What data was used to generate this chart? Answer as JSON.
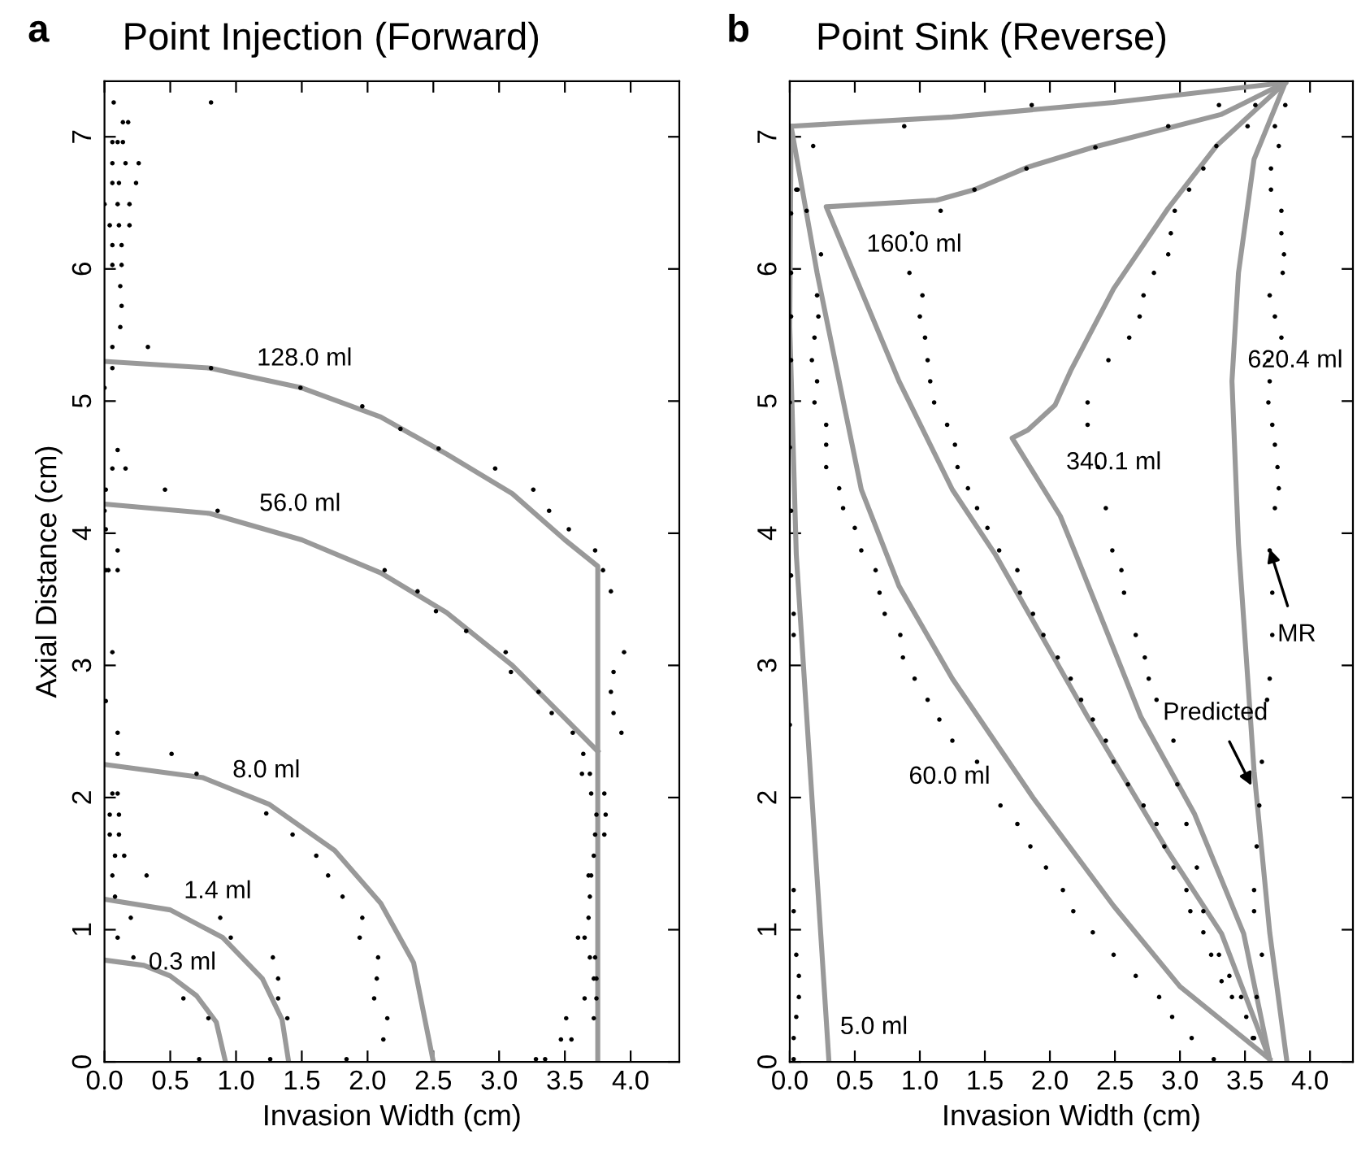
{
  "chart_data": [
    {
      "type": "line",
      "title": "Point Injection (Forward)",
      "xlabel": "Invasion Width (cm)",
      "ylabel": "Axial Distance (cm)",
      "xlim": [
        0,
        4.37
      ],
      "ylim": [
        0,
        7.42
      ],
      "xticks": [
        {
          "value": 0,
          "label": "0.0"
        },
        {
          "value": 0.5,
          "label": "0.5"
        },
        {
          "value": 1,
          "label": "1.0"
        },
        {
          "value": 1.5,
          "label": "1.5"
        },
        {
          "value": 2,
          "label": "2.0"
        },
        {
          "value": 2.5,
          "label": "2.5"
        },
        {
          "value": 3,
          "label": "3.0"
        },
        {
          "value": 3.5,
          "label": "3.5"
        },
        {
          "value": 4,
          "label": "4.0"
        }
      ],
      "yticks": [
        0,
        1,
        2,
        3,
        4,
        5,
        6,
        7
      ],
      "grid": false,
      "series": [
        {
          "name": "0.3 ml",
          "color": "#999999",
          "x": [
            0,
            0.3,
            0.5,
            0.7,
            0.85,
            0.92
          ],
          "values": [
            0.77,
            0.73,
            0.65,
            0.5,
            0.3,
            0
          ]
        },
        {
          "name": "1.4 ml",
          "color": "#999999",
          "x": [
            0,
            0.5,
            0.9,
            1.2,
            1.35,
            1.4
          ],
          "values": [
            1.23,
            1.15,
            0.94,
            0.63,
            0.32,
            0
          ]
        },
        {
          "name": "8.0 ml",
          "color": "#999999",
          "x": [
            0,
            0.75,
            1.25,
            1.75,
            2.1,
            2.35,
            2.5
          ],
          "values": [
            2.25,
            2.15,
            1.95,
            1.6,
            1.2,
            0.75,
            0
          ]
        },
        {
          "name": "56.0 ml",
          "color": "#999999",
          "x": [
            0,
            0.8,
            1.5,
            2.1,
            2.6,
            3.1,
            3.5,
            3.75
          ],
          "values": [
            4.22,
            4.15,
            3.95,
            3.7,
            3.4,
            3.0,
            2.6,
            2.35
          ]
        },
        {
          "name": "128.0 ml",
          "color": "#999999",
          "x": [
            0,
            0.8,
            1.5,
            2.1,
            2.6,
            3.1,
            3.5,
            3.75,
            3.75
          ],
          "values": [
            5.3,
            5.25,
            5.1,
            4.88,
            4.6,
            4.3,
            3.95,
            3.75,
            0
          ]
        },
        {
          "type": "scatter",
          "color": "#000000",
          "x": [
            0.07,
            0.81,
            0.14,
            0.18,
            0.06,
            0.1,
            0.14,
            0.06,
            0.16,
            0.26,
            0.06,
            0.11,
            0.24,
            0.0,
            0.1,
            0.19,
            0.04,
            0.11,
            0.19,
            0.06,
            0.13,
            0.06,
            0.13,
            0.12,
            0.13,
            0.12,
            0.06,
            0.33,
            0.06,
            0.81,
            1.49,
            1.96,
            2.25,
            2.54,
            2.97,
            3.26,
            3.38,
            3.53,
            3.73,
            0.0,
            0.1,
            0.06,
            0.16,
            0.46,
            0.01,
            0.0,
            0.86,
            0.01,
            0.1,
            0.03,
            0.1,
            2.13,
            2.38,
            2.52,
            2.75,
            3.05,
            3.09,
            3.3,
            3.4,
            3.56,
            3.64,
            3.79,
            3.85,
            3.95,
            3.87,
            3.85,
            3.87,
            3.93,
            3.63,
            3.69,
            3.7,
            3.8,
            3.74,
            3.81,
            3.73,
            3.8,
            3.72,
            3.68,
            3.7,
            3.69,
            3.68,
            3.6,
            3.65,
            3.69,
            3.73,
            3.72,
            3.74,
            3.65,
            3.74,
            3.72,
            3.51,
            3.47,
            3.55,
            3.28,
            3.35,
            0.51,
            0.7,
            1.23,
            1.43,
            1.61,
            1.7,
            1.81,
            1.96,
            1.94,
            2.08,
            2.07,
            2.05,
            2.15,
            2.12,
            1.84,
            0.32,
            0.2,
            0.88,
            0.96,
            1.28,
            1.32,
            1.32,
            1.39,
            1.26,
            0.22,
            0.6,
            0.79,
            0.72,
            0.1,
            0.1,
            0.06,
            0.1,
            0.04,
            0.11,
            0.04,
            0.11,
            0.08,
            0.15,
            0.06,
            0.08,
            0.1,
            0.01,
            0.06,
            0.01
          ],
          "values": [
            7.26,
            7.26,
            7.11,
            7.11,
            6.96,
            6.96,
            6.96,
            6.8,
            6.8,
            6.8,
            6.65,
            6.65,
            6.65,
            6.49,
            6.49,
            6.49,
            6.33,
            6.33,
            6.33,
            6.18,
            6.18,
            6.03,
            6.03,
            5.87,
            5.72,
            5.56,
            5.41,
            5.41,
            5.25,
            5.25,
            5.1,
            4.96,
            4.79,
            4.64,
            4.49,
            4.33,
            4.17,
            4.03,
            3.87,
            5.1,
            4.63,
            4.49,
            4.49,
            4.33,
            4.33,
            4.17,
            4.17,
            4.03,
            3.87,
            3.72,
            3.72,
            3.72,
            3.56,
            3.41,
            3.26,
            3.1,
            2.95,
            2.8,
            2.64,
            2.49,
            2.33,
            3.72,
            3.56,
            3.1,
            2.95,
            2.8,
            2.64,
            2.49,
            2.18,
            2.18,
            2.03,
            2.03,
            1.87,
            1.87,
            1.72,
            1.72,
            1.56,
            1.41,
            1.41,
            1.25,
            1.09,
            0.94,
            0.94,
            0.79,
            0.79,
            0.63,
            0.63,
            0.48,
            0.48,
            0.33,
            0.33,
            0.17,
            0.17,
            0.02,
            0.02,
            2.33,
            2.18,
            1.88,
            1.72,
            1.56,
            1.41,
            1.25,
            1.09,
            0.94,
            0.79,
            0.63,
            0.48,
            0.33,
            0.17,
            0.02,
            1.41,
            1.09,
            1.09,
            0.94,
            0.79,
            0.63,
            0.48,
            0.33,
            0.02,
            0.79,
            0.48,
            0.33,
            0.02,
            2.49,
            2.33,
            2.03,
            2.03,
            1.87,
            1.87,
            1.72,
            1.72,
            1.56,
            1.56,
            1.41,
            1.25,
            0.94,
            3.72,
            3.1,
            2.73
          ]
        }
      ],
      "annotations": [
        "a"
      ]
    },
    {
      "type": "line",
      "title": "Point Sink (Reverse)",
      "xlabel": "Invasion Width (cm)",
      "xlim": [
        0,
        4.33
      ],
      "ylim": [
        0,
        7.42
      ],
      "xticks": [
        {
          "value": 0,
          "label": "0.0"
        },
        {
          "value": 0.5,
          "label": "0.5"
        },
        {
          "value": 1,
          "label": "1.0"
        },
        {
          "value": 1.5,
          "label": "1.5"
        },
        {
          "value": 2,
          "label": "2.0"
        },
        {
          "value": 2.5,
          "label": "2.5"
        },
        {
          "value": 3,
          "label": "3.0"
        },
        {
          "value": 3.5,
          "label": "3.5"
        },
        {
          "value": 4,
          "label": "4.0"
        }
      ],
      "yticks": [
        0,
        1,
        2,
        3,
        4,
        5,
        6,
        7
      ],
      "grid": false,
      "series": [
        {
          "name": "5.0 ml",
          "color": "#999999",
          "x": [
            0.01,
            0.0,
            0.05,
            0.3
          ],
          "values": [
            7.08,
            5.56,
            3.84,
            0.02
          ]
        },
        {
          "name": "60.0 ml",
          "color": "#999999",
          "x": [
            3.81,
            2.49,
            1.25,
            0.01,
            0.21,
            0.55,
            0.84,
            1.25,
            1.87,
            2.49,
            3.0,
            3.69
          ],
          "values": [
            7.41,
            7.26,
            7.15,
            7.08,
            5.97,
            4.33,
            3.6,
            2.9,
            2.0,
            1.18,
            0.57,
            0.02
          ]
        },
        {
          "name": "160.0 ml",
          "color": "#999999",
          "x": [
            3.81,
            3.32,
            2.33,
            1.83,
            1.42,
            1.13,
            0.28,
            0.84,
            1.25,
            1.58,
            2.29,
            2.91,
            3.32,
            3.69
          ],
          "values": [
            7.41,
            7.17,
            6.92,
            6.77,
            6.6,
            6.52,
            6.47,
            5.15,
            4.33,
            3.84,
            2.61,
            1.59,
            0.97,
            0.02
          ]
        },
        {
          "name": "340.1 ml",
          "color": "#999999",
          "x": [
            3.81,
            3.28,
            2.91,
            2.49,
            2.16,
            2.04,
            1.83,
            1.71,
            2.08,
            2.2,
            2.7,
            3.11,
            3.49,
            3.69
          ],
          "values": [
            7.41,
            6.93,
            6.46,
            5.85,
            5.23,
            4.97,
            4.78,
            4.72,
            4.13,
            3.84,
            2.61,
            1.88,
            0.97,
            0.02
          ]
        },
        {
          "name": "620.4 ml",
          "color": "#999999",
          "x": [
            3.81,
            3.57,
            3.45,
            3.4,
            3.45,
            3.57,
            3.69,
            3.82
          ],
          "values": [
            7.41,
            6.83,
            5.97,
            5.15,
            3.92,
            2.2,
            0.98,
            0.02
          ]
        },
        {
          "type": "scatter",
          "color": "#000000",
          "x": [
            3.81,
            3.73,
            3.76,
            3.7,
            3.7,
            3.78,
            3.78,
            3.8,
            3.79,
            3.69,
            3.73,
            3.78,
            3.68,
            3.69,
            3.68,
            3.71,
            3.73,
            3.75,
            3.76,
            3.73,
            3.69,
            3.71,
            3.71,
            3.69,
            3.67,
            3.63,
            3.61,
            3.59,
            3.57,
            3.57,
            3.63,
            3.59,
            3.56,
            3.58,
            3.52,
            3.28,
            3.18,
            3.07,
            2.96,
            2.93,
            2.91,
            2.8,
            2.72,
            2.69,
            2.61,
            2.45,
            2.29,
            2.29,
            2.37,
            2.43,
            2.48,
            2.55,
            2.57,
            2.66,
            2.73,
            2.76,
            2.82,
            2.95,
            2.98,
            3.05,
            3.13,
            3.18,
            3.24,
            3.32,
            3.4,
            0.88,
            1.86,
            3.3,
            2.91,
            2.35,
            1.82,
            1.42,
            1.16,
            0.94,
            0.92,
            1.02,
            1.0,
            1.04,
            1.06,
            1.08,
            1.11,
            1.21,
            1.27,
            1.29,
            1.37,
            1.44,
            1.52,
            1.61,
            1.75,
            1.77,
            1.87,
            1.95,
            2.06,
            2.16,
            2.24,
            2.33,
            2.43,
            2.49,
            2.6,
            2.72,
            2.82,
            2.88,
            2.95,
            3.05,
            3.08,
            3.18,
            3.3,
            3.38,
            3.47,
            3.51,
            3.57,
            0.18,
            0.06,
            0.13,
            0.24,
            0.21,
            0.22,
            0.19,
            0.17,
            0.21,
            0.19,
            0.28,
            0.28,
            0.28,
            0.38,
            0.41,
            0.5,
            0.55,
            0.66,
            0.69,
            0.73,
            0.85,
            0.87,
            0.96,
            1.06,
            1.15,
            1.25,
            1.44,
            1.62,
            1.75,
            1.85,
            1.97,
            2.1,
            2.18,
            2.33,
            2.49,
            2.66,
            2.84,
            2.94,
            3.09,
            3.26,
            0.05,
            0.01,
            0.01,
            0.01,
            0.01,
            0.0,
            0.0,
            0.01,
            0.01,
            0.03,
            0.03,
            0.0,
            0.03,
            0.03,
            0.05,
            0.07,
            0.07,
            0.05,
            0.03,
            0.03
          ],
          "values": [
            7.24,
            7.08,
            6.93,
            6.76,
            6.6,
            6.44,
            6.27,
            6.11,
            5.97,
            5.8,
            5.64,
            5.48,
            5.31,
            5.15,
            4.99,
            4.82,
            4.67,
            4.5,
            4.34,
            4.19,
            3.87,
            3.55,
            3.23,
            2.9,
            2.74,
            2.27,
            1.94,
            1.63,
            1.3,
            1.14,
            0.81,
            0.49,
            0.18,
            7.24,
            7.08,
            6.93,
            6.76,
            6.6,
            6.44,
            6.27,
            6.11,
            5.97,
            5.8,
            5.64,
            5.48,
            5.31,
            4.99,
            4.82,
            4.5,
            4.19,
            3.87,
            3.72,
            3.55,
            3.23,
            3.06,
            2.9,
            2.74,
            2.43,
            2.1,
            1.8,
            1.47,
            1.14,
            0.81,
            0.61,
            0.49,
            7.08,
            7.24,
            7.24,
            7.08,
            6.92,
            6.76,
            6.6,
            6.44,
            6.27,
            5.97,
            5.8,
            5.64,
            5.48,
            5.31,
            5.15,
            4.99,
            4.82,
            4.67,
            4.5,
            4.34,
            4.19,
            4.04,
            3.87,
            3.72,
            3.55,
            3.39,
            3.23,
            3.06,
            2.9,
            2.74,
            2.59,
            2.43,
            2.27,
            2.1,
            1.94,
            1.8,
            1.63,
            1.47,
            1.3,
            1.14,
            0.98,
            0.81,
            0.65,
            0.49,
            0.34,
            0.18,
            6.93,
            6.6,
            6.44,
            6.11,
            5.8,
            5.64,
            5.48,
            5.31,
            5.15,
            4.99,
            4.82,
            4.67,
            4.5,
            4.34,
            4.19,
            4.04,
            3.87,
            3.72,
            3.55,
            3.39,
            3.23,
            3.06,
            2.9,
            2.74,
            2.59,
            2.43,
            2.27,
            1.94,
            1.8,
            1.63,
            1.47,
            1.3,
            1.14,
            0.98,
            0.81,
            0.65,
            0.49,
            0.34,
            0.18,
            0.02,
            6.6,
            6.42,
            5.97,
            5.64,
            5.31,
            4.99,
            4.65,
            4.17,
            3.68,
            3.39,
            3.23,
            2.55,
            1.3,
            1.14,
            0.81,
            0.65,
            0.49,
            0.34,
            0.18,
            0.02
          ]
        }
      ],
      "annotations": [
        "b",
        {
          "text": "Predicted",
          "x": 3.55,
          "y": 2.09
        },
        {
          "text": "MR",
          "x": 3.69,
          "y": 3.88
        }
      ]
    }
  ]
}
